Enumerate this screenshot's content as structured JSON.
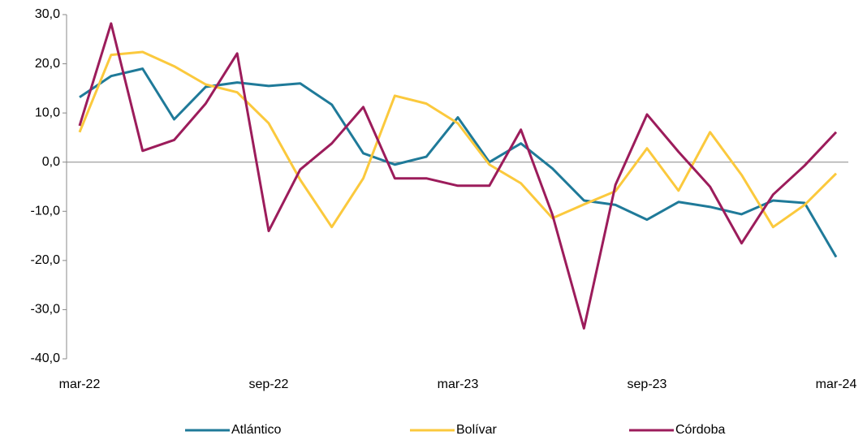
{
  "chart_data": {
    "type": "line",
    "categories": [
      "mar-22",
      null,
      null,
      null,
      null,
      null,
      "sep-22",
      null,
      null,
      null,
      null,
      null,
      "mar-23",
      null,
      null,
      null,
      null,
      null,
      "sep-23",
      null,
      null,
      null,
      null,
      null,
      "mar-24"
    ],
    "series": [
      {
        "name": "Atlántico",
        "color": "#1f7a99",
        "values": [
          13.2,
          17.5,
          19.0,
          8.7,
          15.3,
          16.2,
          15.5,
          16.0,
          11.7,
          1.8,
          -0.5,
          1.1,
          9.1,
          0.0,
          3.8,
          -1.3,
          -7.8,
          -8.7,
          -11.7,
          -8.1,
          -9.1,
          -10.6,
          -7.8,
          -8.3,
          -19.3
        ]
      },
      {
        "name": "Bolívar",
        "color": "#fbc93d",
        "values": [
          6.1,
          21.8,
          22.4,
          19.5,
          15.8,
          14.2,
          7.9,
          -3.6,
          -13.2,
          -3.3,
          13.5,
          11.9,
          7.9,
          -0.5,
          -4.3,
          -11.4,
          -8.6,
          -5.9,
          2.8,
          -5.8,
          6.1,
          -2.6,
          -13.2,
          -8.7,
          -2.3
        ]
      },
      {
        "name": "Córdoba",
        "color": "#9c1c5b",
        "values": [
          7.4,
          28.2,
          2.3,
          4.5,
          11.9,
          22.1,
          -14.0,
          -1.5,
          3.8,
          11.2,
          -3.3,
          -3.3,
          -4.8,
          -4.8,
          6.6,
          -10.7,
          -33.8,
          -4.6,
          9.7,
          2.1,
          -5.0,
          -16.5,
          -6.6,
          -0.7,
          6.1
        ]
      }
    ],
    "ylim": [
      -40,
      30
    ],
    "yticks": [
      {
        "value": -40,
        "label": "-40,0"
      },
      {
        "value": -30,
        "label": "-30,0"
      },
      {
        "value": -20,
        "label": "-20,0"
      },
      {
        "value": -10,
        "label": "-10,0"
      },
      {
        "value": 0,
        "label": "0,0"
      },
      {
        "value": 10,
        "label": "10,0"
      },
      {
        "value": 20,
        "label": "20,0"
      },
      {
        "value": 30,
        "label": "30,0"
      }
    ],
    "legend": "bottom"
  }
}
